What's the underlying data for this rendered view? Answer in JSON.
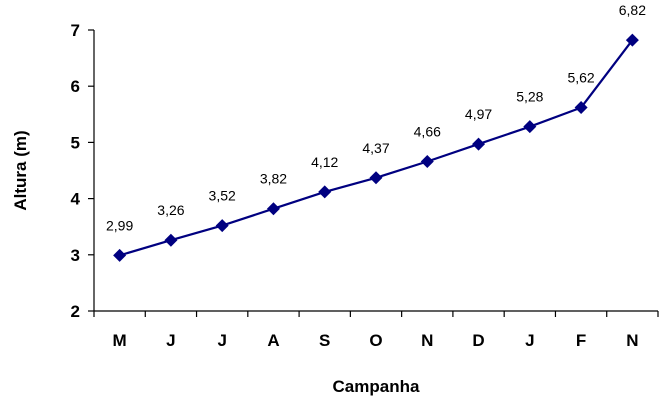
{
  "chart_data": {
    "type": "line",
    "categories": [
      "M",
      "J",
      "J",
      "A",
      "S",
      "O",
      "N",
      "D",
      "J",
      "F",
      "N"
    ],
    "series": [
      {
        "values": [
          2.99,
          3.26,
          3.52,
          3.82,
          4.12,
          4.37,
          4.66,
          4.97,
          5.28,
          5.62,
          6.82
        ],
        "data_labels": [
          "2,99",
          "3,26",
          "3,52",
          "3,82",
          "4,12",
          "4,37",
          "4,66",
          "4,97",
          "5,28",
          "5,62",
          "6,82"
        ],
        "color": "#000080",
        "marker": "diamond"
      }
    ],
    "title": "",
    "xlabel": "Campanha",
    "ylabel": "Altura (m)",
    "ylim": [
      2,
      7
    ],
    "yticks": [
      2,
      3,
      4,
      5,
      6,
      7
    ],
    "grid": false,
    "legend": "none"
  }
}
